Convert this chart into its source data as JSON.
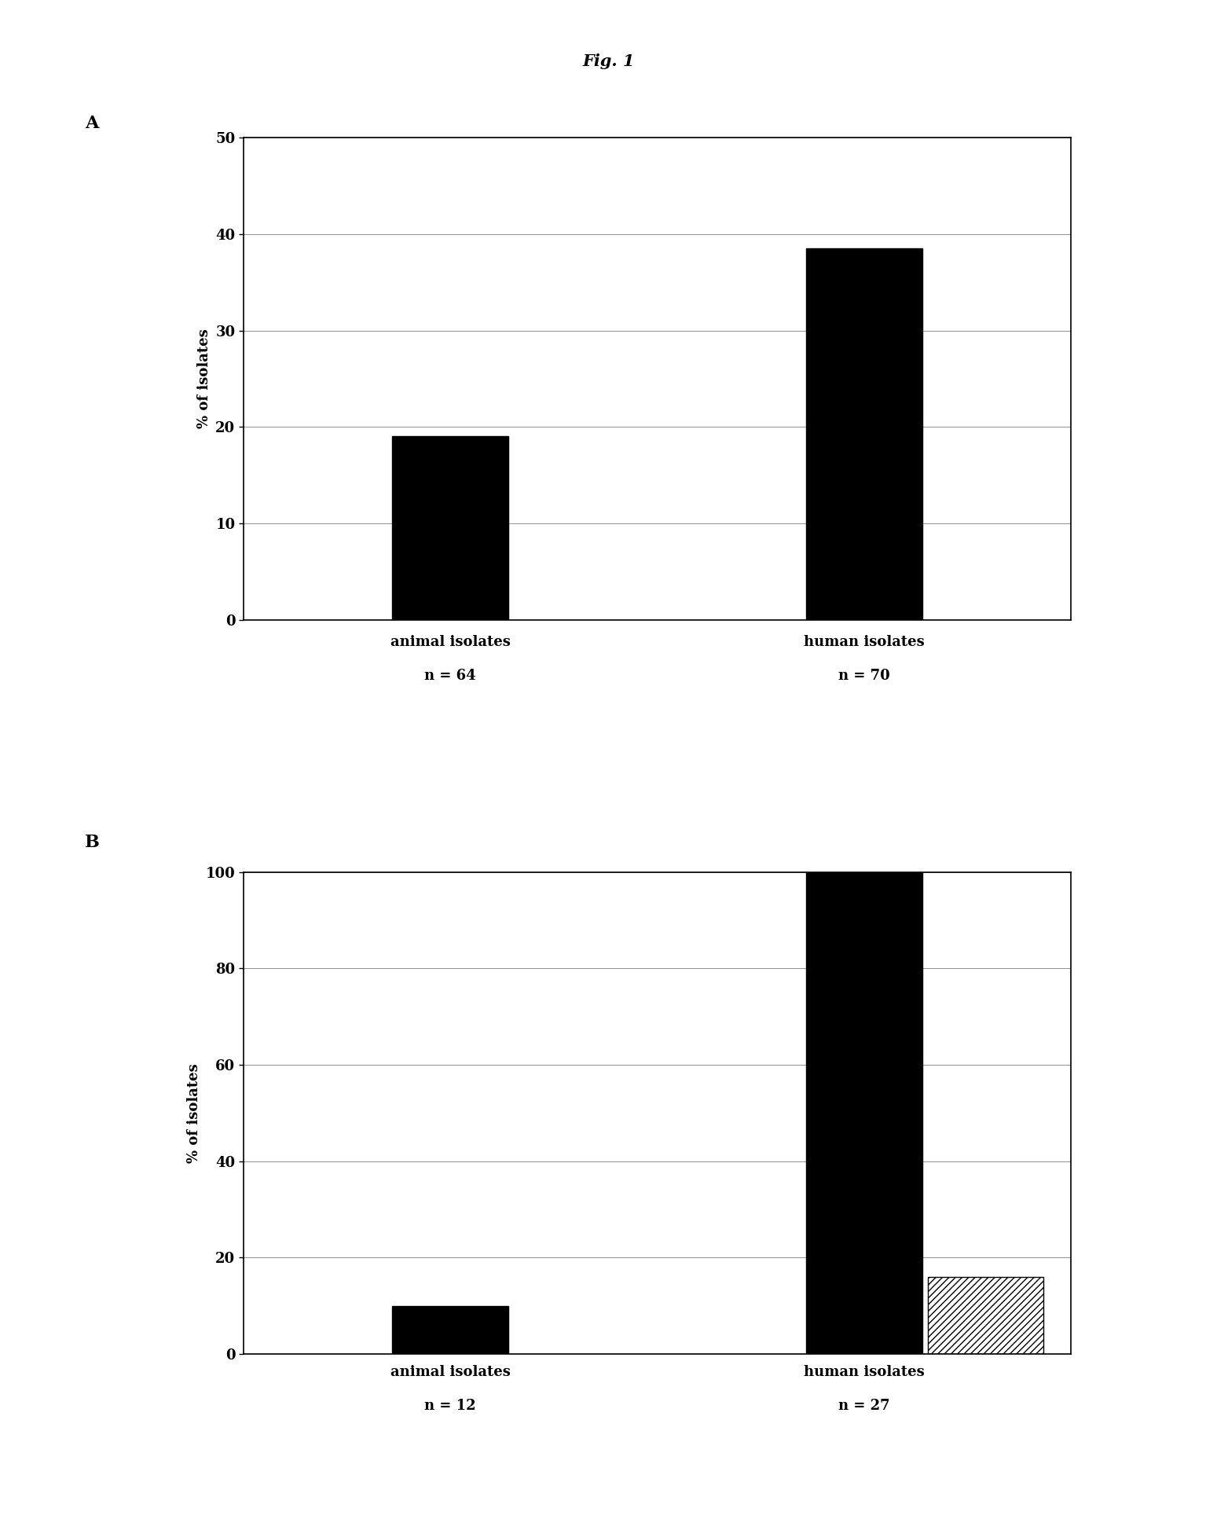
{
  "title": "Fig. 1",
  "panel_A": {
    "label": "A",
    "cat_labels": [
      "animal isolates",
      "human isolates"
    ],
    "cat_n": [
      "n = 64",
      "n = 70"
    ],
    "values": [
      19.0,
      38.5
    ],
    "ylabel": "% of isolates",
    "ylim": [
      0,
      50
    ],
    "yticks": [
      0,
      10,
      20,
      30,
      40,
      50
    ],
    "bar_color": "#000000",
    "bar_width": 0.28
  },
  "panel_B": {
    "label": "B",
    "cat_labels": [
      "animal isolates",
      "human isolates"
    ],
    "cat_n": [
      "n = 12",
      "n = 27"
    ],
    "solid_values": [
      10.0,
      100.0
    ],
    "hatched_value": 16.0,
    "ylabel": "% of isolates",
    "ylim": [
      0,
      100
    ],
    "yticks": [
      0,
      20,
      40,
      60,
      80,
      100
    ],
    "bar_color": "#000000",
    "bar_width": 0.28
  },
  "background_color": "#ffffff",
  "tick_fontsize": 13,
  "ylabel_fontsize": 13,
  "xlabel_fontsize": 13,
  "title_fontsize": 15,
  "panel_label_fontsize": 16
}
